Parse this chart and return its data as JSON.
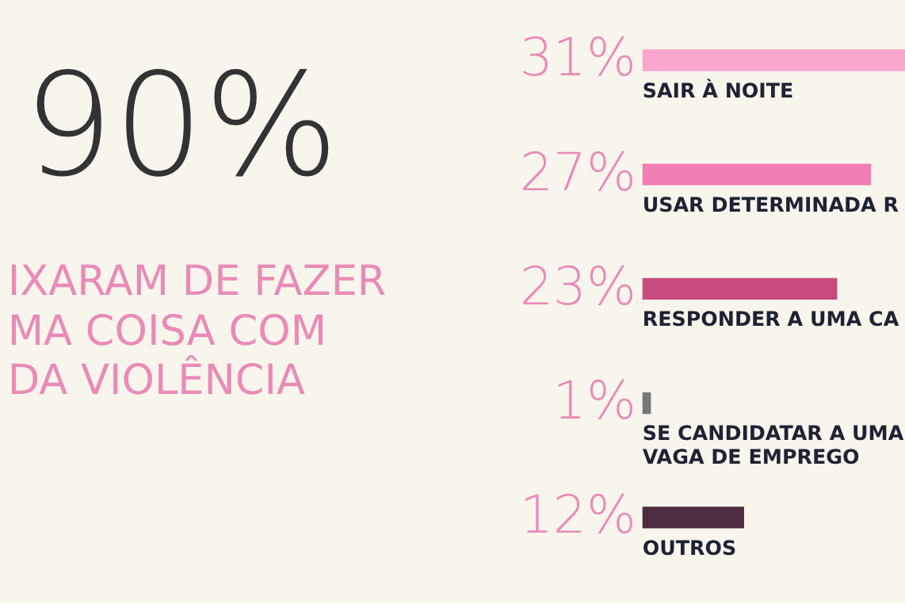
{
  "chart_data": {
    "type": "bar",
    "orientation": "horizontal",
    "title": "90%",
    "subtitle": "IXARAM DE FAZER\nMA COISA COM\nDA VIOLÊNCIA",
    "categories": [
      "SAIR À NOITE",
      "USAR DETERMINADA R",
      "RESPONDER A UMA CA",
      "SE CANDIDATAR A UMA\nVAGA DE EMPREGO",
      "OUTROS"
    ],
    "values": [
      31,
      27,
      23,
      1,
      12
    ],
    "colors": [
      "#f9a6cc",
      "#f17fb6",
      "#c94c7e",
      "#777777",
      "#4e2c40"
    ],
    "value_labels": [
      "31%",
      "27%",
      "23%",
      "1%",
      "12%"
    ],
    "tick_labels": false
  }
}
